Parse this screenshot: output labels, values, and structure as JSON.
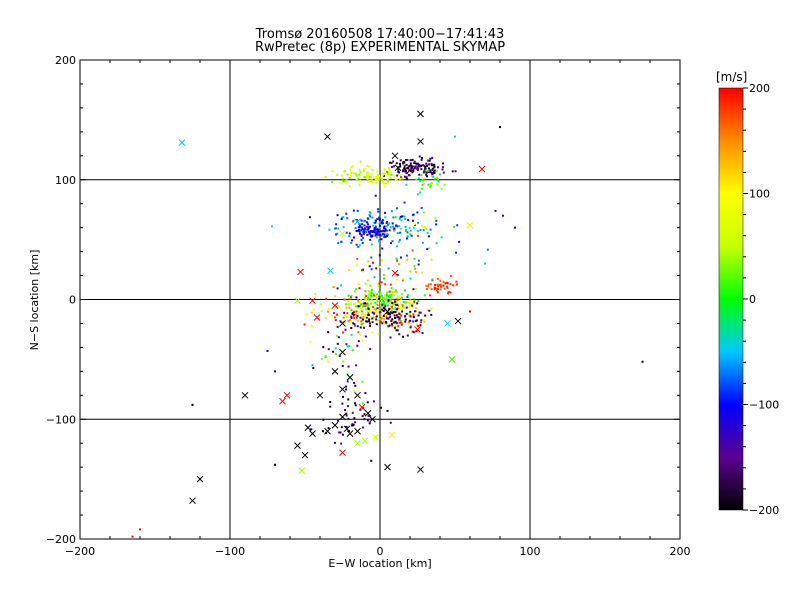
{
  "chart_data": {
    "type": "scatter",
    "title": "Tromsø 20160508 17:40:00−17:41:43",
    "subtitle": "RwPretec (8p) EXPERIMENTAL SKYMAP",
    "xlabel": "E−W location [km]",
    "ylabel": "N−S location [km]",
    "xlim": [
      -200,
      200
    ],
    "ylim": [
      -200,
      200
    ],
    "xticks": [
      -200,
      -100,
      0,
      100,
      200
    ],
    "yticks": [
      -200,
      -100,
      0,
      100,
      200
    ],
    "x_tick_labels": [
      "−200",
      "−100",
      "0",
      "100",
      "200"
    ],
    "y_tick_labels": [
      "−200",
      "−100",
      "0",
      "100",
      "200"
    ],
    "grid": true,
    "colorbar": {
      "unit": "[m/s]",
      "range": [
        -200,
        200
      ],
      "ticks": [
        200,
        100,
        0,
        -100,
        -200
      ],
      "tick_labels": [
        "200",
        "100",
        "0",
        "−100",
        "−200"
      ],
      "colormap": [
        "#000000",
        "#5b008f",
        "#0000ff",
        "#00c8ff",
        "#00ff00",
        "#c8ff00",
        "#ffff00",
        "#ff8c00",
        "#ff0000"
      ]
    },
    "crosses": [
      {
        "x": 27,
        "y": 155,
        "v": -200
      },
      {
        "x": -35,
        "y": 136,
        "v": -200
      },
      {
        "x": 27,
        "y": 132,
        "v": -200
      },
      {
        "x": -132,
        "y": 131,
        "v": -50
      },
      {
        "x": 10,
        "y": 120,
        "v": -200
      },
      {
        "x": 68,
        "y": 109,
        "v": 200
      },
      {
        "x": 12,
        "y": 110,
        "v": -200
      },
      {
        "x": 20,
        "y": 108,
        "v": -180
      },
      {
        "x": 60,
        "y": 62,
        "v": 110
      },
      {
        "x": -25,
        "y": 55,
        "v": 60
      },
      {
        "x": -15,
        "y": 65,
        "v": -60
      },
      {
        "x": -53,
        "y": 23,
        "v": 200
      },
      {
        "x": -33,
        "y": 24,
        "v": -50
      },
      {
        "x": 10,
        "y": 22,
        "v": 200
      },
      {
        "x": -45,
        "y": -1,
        "v": 200
      },
      {
        "x": -55,
        "y": -1,
        "v": 40
      },
      {
        "x": -30,
        "y": -5,
        "v": 200
      },
      {
        "x": -42,
        "y": -15,
        "v": 200
      },
      {
        "x": -25,
        "y": -20,
        "v": -200
      },
      {
        "x": 5,
        "y": -10,
        "v": -200
      },
      {
        "x": 25,
        "y": -25,
        "v": 200
      },
      {
        "x": 45,
        "y": -20,
        "v": -50
      },
      {
        "x": 52,
        "y": -18,
        "v": -200
      },
      {
        "x": 48,
        "y": -50,
        "v": 20
      },
      {
        "x": -25,
        "y": -44,
        "v": -200
      },
      {
        "x": -30,
        "y": -60,
        "v": -200
      },
      {
        "x": -20,
        "y": -65,
        "v": -200
      },
      {
        "x": -25,
        "y": -75,
        "v": -200
      },
      {
        "x": -40,
        "y": -80,
        "v": -200
      },
      {
        "x": -15,
        "y": -80,
        "v": -200
      },
      {
        "x": -62,
        "y": -80,
        "v": 200
      },
      {
        "x": -65,
        "y": -85,
        "v": 200
      },
      {
        "x": -90,
        "y": -80,
        "v": -200
      },
      {
        "x": -12,
        "y": -90,
        "v": 200
      },
      {
        "x": -8,
        "y": -95,
        "v": -200
      },
      {
        "x": -5,
        "y": -100,
        "v": -200
      },
      {
        "x": -25,
        "y": -98,
        "v": -200
      },
      {
        "x": -30,
        "y": -105,
        "v": -200
      },
      {
        "x": -48,
        "y": -107,
        "v": -200
      },
      {
        "x": -55,
        "y": -122,
        "v": -200
      },
      {
        "x": -50,
        "y": -130,
        "v": -200
      },
      {
        "x": -45,
        "y": -112,
        "v": -200
      },
      {
        "x": -35,
        "y": -110,
        "v": -200
      },
      {
        "x": -22,
        "y": -108,
        "v": -200
      },
      {
        "x": -20,
        "y": -112,
        "v": -200
      },
      {
        "x": -15,
        "y": -110,
        "v": -200
      },
      {
        "x": -10,
        "y": -118,
        "v": 40
      },
      {
        "x": -15,
        "y": -120,
        "v": 40
      },
      {
        "x": -25,
        "y": -128,
        "v": 200
      },
      {
        "x": -3,
        "y": -115,
        "v": 60
      },
      {
        "x": 8,
        "y": -113,
        "v": 110
      },
      {
        "x": -52,
        "y": -143,
        "v": 40
      },
      {
        "x": 5,
        "y": -140,
        "v": -200
      },
      {
        "x": 27,
        "y": -142,
        "v": -200
      },
      {
        "x": -120,
        "y": -150,
        "v": -200
      },
      {
        "x": -125,
        "y": -168,
        "v": -200
      }
    ],
    "points": [
      {
        "x": 80,
        "y": 144,
        "v": -200
      },
      {
        "x": 50,
        "y": 136,
        "v": -50
      },
      {
        "x": 175,
        "y": -52,
        "v": -200
      },
      {
        "x": -72,
        "y": 61,
        "v": -50
      },
      {
        "x": 77,
        "y": 74,
        "v": -120
      },
      {
        "x": 82,
        "y": 70,
        "v": -140
      },
      {
        "x": -75,
        "y": -43,
        "v": -120
      },
      {
        "x": -165,
        "y": -198,
        "v": 200
      },
      {
        "x": -160,
        "y": -192,
        "v": 200
      },
      {
        "x": -125,
        "y": -88,
        "v": -200
      },
      {
        "x": -70,
        "y": -138,
        "v": -200
      },
      {
        "x": -38,
        "y": -110,
        "v": -200
      },
      {
        "x": 5,
        "y": -93,
        "v": -200
      },
      {
        "x": -70,
        "y": -60,
        "v": -120
      },
      {
        "x": -45,
        "y": -55,
        "v": -60
      },
      {
        "x": 90,
        "y": 60,
        "v": -100
      },
      {
        "x": 60,
        "y": -10,
        "v": 200
      },
      {
        "x": 70,
        "y": 30,
        "v": -50
      }
    ],
    "clusters": [
      {
        "cx": 25,
        "cy": 110,
        "sx": 10,
        "sy": 4,
        "n": 130,
        "vmin": -200,
        "vmax": -140
      },
      {
        "cx": -8,
        "cy": 103,
        "sx": 13,
        "sy": 4,
        "n": 110,
        "vmin": 20,
        "vmax": 110
      },
      {
        "cx": 35,
        "cy": 100,
        "sx": 8,
        "sy": 5,
        "n": 30,
        "vmin": -40,
        "vmax": 40
      },
      {
        "cx": 0,
        "cy": 60,
        "sx": 14,
        "sy": 7,
        "n": 170,
        "vmin": -110,
        "vmax": -40
      },
      {
        "cx": -5,
        "cy": 57,
        "sx": 6,
        "sy": 3,
        "n": 70,
        "vmin": -140,
        "vmax": -100
      },
      {
        "cx": 30,
        "cy": 55,
        "sx": 15,
        "sy": 12,
        "n": 30,
        "vmin": -110,
        "vmax": 110
      },
      {
        "cx": 0,
        "cy": 0,
        "sx": 10,
        "sy": 6,
        "n": 160,
        "vmin": -20,
        "vmax": 60
      },
      {
        "cx": -5,
        "cy": -12,
        "sx": 18,
        "sy": 8,
        "n": 200,
        "vmin": 40,
        "vmax": 200
      },
      {
        "cx": 5,
        "cy": -15,
        "sx": 14,
        "sy": 7,
        "n": 120,
        "vmin": -200,
        "vmax": -140
      },
      {
        "cx": 40,
        "cy": 10,
        "sx": 6,
        "sy": 3,
        "n": 40,
        "vmin": 160,
        "vmax": 200
      },
      {
        "cx": 5,
        "cy": 25,
        "sx": 18,
        "sy": 12,
        "n": 60,
        "vmin": -200,
        "vmax": 200
      },
      {
        "cx": -25,
        "cy": -45,
        "sx": 8,
        "sy": 20,
        "n": 40,
        "vmin": -200,
        "vmax": 100
      },
      {
        "cx": -20,
        "cy": -100,
        "sx": 12,
        "sy": 15,
        "n": 50,
        "vmin": -200,
        "vmax": -150
      }
    ]
  }
}
